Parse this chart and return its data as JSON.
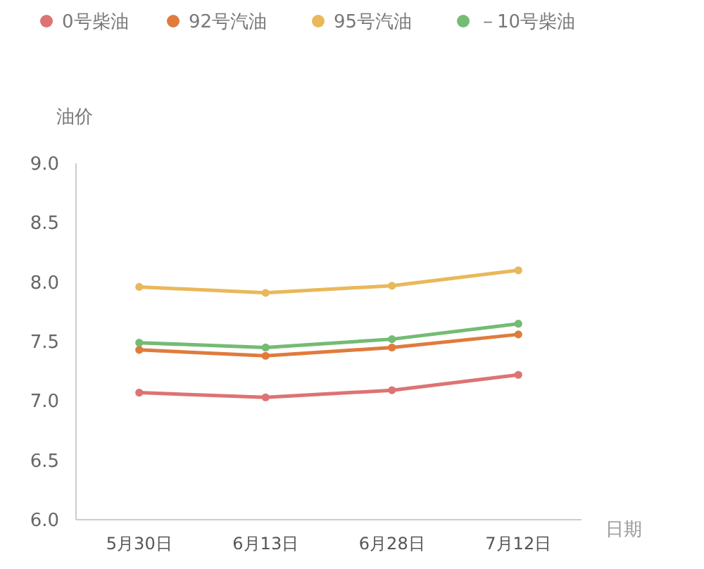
{
  "chart_data": {
    "type": "line",
    "ylabel": "油价",
    "xlabel": "日期",
    "categories": [
      "5月30日",
      "6月13日",
      "6月28日",
      "7月12日"
    ],
    "series": [
      {
        "name": "0号柴油",
        "color": "#dd7373",
        "values": [
          7.07,
          7.03,
          7.09,
          7.22
        ]
      },
      {
        "name": "92号汽油",
        "color": "#e07b3c",
        "values": [
          7.43,
          7.38,
          7.45,
          7.56
        ]
      },
      {
        "name": "95号汽油",
        "color": "#e9b85a",
        "values": [
          7.96,
          7.91,
          7.97,
          8.1
        ]
      },
      {
        "name": "－10号柴油",
        "color": "#74bb74",
        "values": [
          7.49,
          7.45,
          7.52,
          7.65
        ]
      }
    ],
    "ylim": [
      6,
      9
    ],
    "yticks": [
      {
        "value": 6,
        "label": "6.0"
      },
      {
        "value": 6.5,
        "label": "6.5"
      },
      {
        "value": 7,
        "label": "7.0"
      },
      {
        "value": 7.5,
        "label": "7.5"
      },
      {
        "value": 8,
        "label": "8.0"
      },
      {
        "value": 8.5,
        "label": "8.5"
      },
      {
        "value": 9,
        "label": "9.0"
      }
    ],
    "legend": "top left",
    "marker": "circle",
    "line_style": "solid"
  }
}
